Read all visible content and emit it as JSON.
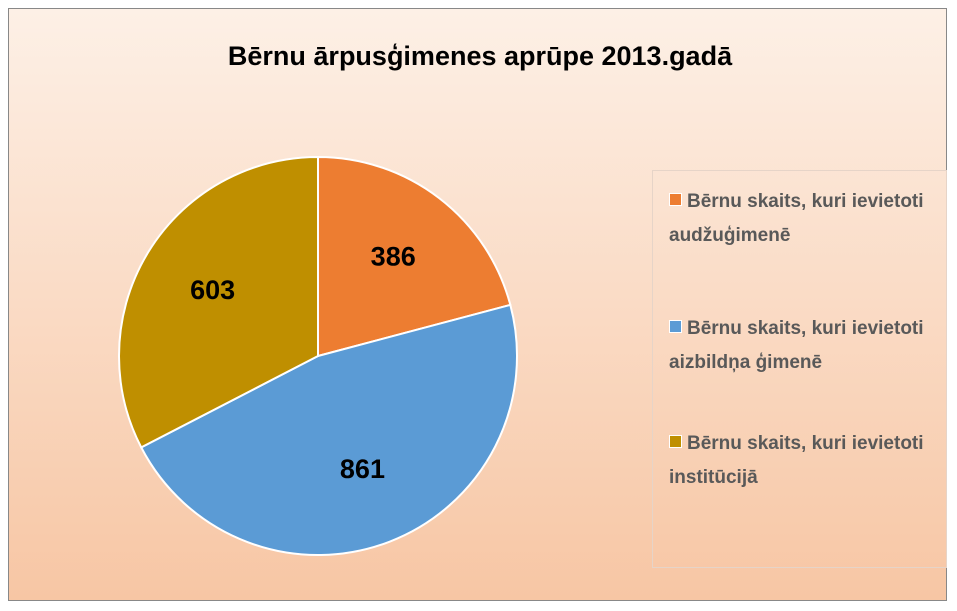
{
  "chart_data": {
    "type": "pie",
    "title": "Bērnu ārpusģimenes aprūpe 2013.gadā",
    "categories": [
      "Bērnu skaits, kuri ievietoti audžuģimenē",
      "Bērnu skaits, kuri ievietoti aizbildņa ģimenē",
      "Bērnu skaits, kuri ievietoti institūcijā"
    ],
    "values": [
      386,
      861,
      603
    ],
    "colors": [
      "#ed7d31",
      "#5b9bd5",
      "#bf8f00"
    ],
    "legend": "right"
  }
}
